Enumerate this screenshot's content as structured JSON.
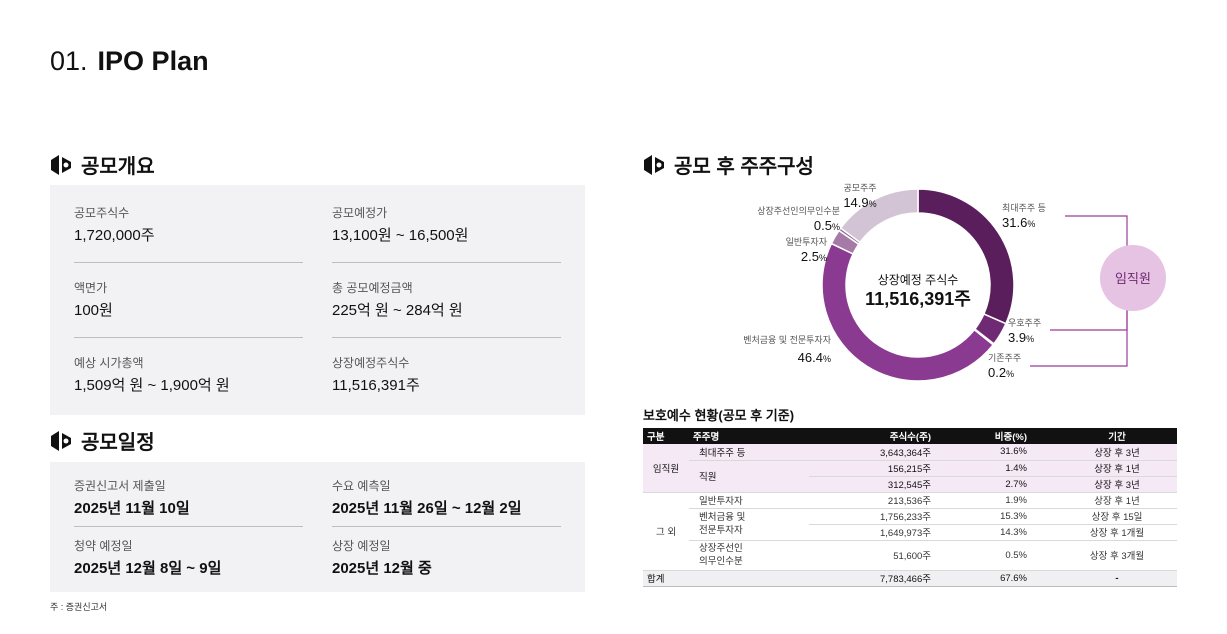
{
  "page": {
    "number": "01.",
    "title": "IPO Plan"
  },
  "overview": {
    "heading": "공모개요",
    "items": [
      {
        "label": "공모주식수",
        "value": "1,720,000주"
      },
      {
        "label": "공모예정가",
        "value": "13,100원 ~ 16,500원"
      },
      {
        "label": "액면가",
        "value": "100원"
      },
      {
        "label": "총 공모예정금액",
        "value": "225억 원 ~ 284억 원"
      },
      {
        "label": "예상 시가총액",
        "value": "1,509억 원 ~ 1,900억 원"
      },
      {
        "label": "상장예정주식수",
        "value": "11,516,391주"
      }
    ]
  },
  "schedule": {
    "heading": "공모일정",
    "items": [
      {
        "label": "증권신고서 제출일",
        "value": "2025년 11월 10일"
      },
      {
        "label": "수요 예측일",
        "value": "2025년 11월 26일 ~ 12월 2일"
      },
      {
        "label": "청약 예정일",
        "value": "2025년 12월 8일 ~ 9일"
      },
      {
        "label": "상장 예정일",
        "value": "2025년 12월 중"
      }
    ]
  },
  "footnote": "주 : 증권신고서",
  "shareholders": {
    "heading": "공모 후 주주구성",
    "center_label": "상장예정 주식수",
    "center_value": "11,516,391주",
    "group_label": "임직원",
    "colors": {
      "largest": "#5a1e5c",
      "employee": "#6f2a74",
      "existing": "#7a3a80",
      "venture": "#8a3a91",
      "general": "#a57aa7",
      "lockup": "#8e6a92",
      "public": "#d3c4d5",
      "group_circle": "#e6c3e3",
      "group_line": "#9b3b9b"
    }
  },
  "chart_data": {
    "type": "pie",
    "title": "공모 후 주주구성",
    "unit": "%",
    "slices": [
      {
        "key": "largest",
        "label": "최대주주 등",
        "value": 31.6
      },
      {
        "key": "employee",
        "label": "우호주주",
        "value": 3.9
      },
      {
        "key": "existing",
        "label": "기존주주",
        "value": 0.2
      },
      {
        "key": "venture",
        "label": "벤처금융 및 전문투자자",
        "value": 46.4
      },
      {
        "key": "general",
        "label": "일반투자자",
        "value": 2.5
      },
      {
        "key": "lockup",
        "label": "상장주선인의무인수분",
        "value": 0.5
      },
      {
        "key": "public",
        "label": "공모주주",
        "value": 14.9
      }
    ]
  },
  "lockup": {
    "title": "보호예수 현황(공모 후 기준)",
    "headers": [
      "구분",
      "주주명",
      "주식수(주)",
      "비중(%)",
      "기간"
    ],
    "group_exec": "임직원",
    "group_other": "그 외",
    "total_label": "합계",
    "rows": {
      "r1": {
        "name": "최대주주 등",
        "shares": "3,643,364주",
        "ratio": "31.6%",
        "period": "상장 후 3년"
      },
      "r2": {
        "name": "직원",
        "shares": "156,215주",
        "ratio": "1.4%",
        "period": "상장 후 1년"
      },
      "r3": {
        "shares": "312,545주",
        "ratio": "2.7%",
        "period": "상장 후 3년"
      },
      "r4": {
        "name": "일반투자자",
        "shares": "213,536주",
        "ratio": "1.9%",
        "period": "상장 후 1년"
      },
      "r5": {
        "name1": "벤처금융 및",
        "name2": "전문투자자",
        "shares": "1,756,233주",
        "ratio": "15.3%",
        "period": "상장 후 15일"
      },
      "r6": {
        "shares": "1,649,973주",
        "ratio": "14.3%",
        "period": "상장 후 1개월"
      },
      "r7": {
        "name1": "상장주선인",
        "name2": "의무인수분",
        "shares": "51,600주",
        "ratio": "0.5%",
        "period": "상장 후 3개월"
      },
      "total": {
        "shares": "7,783,466주",
        "ratio": "67.6%",
        "period": "-"
      }
    }
  }
}
